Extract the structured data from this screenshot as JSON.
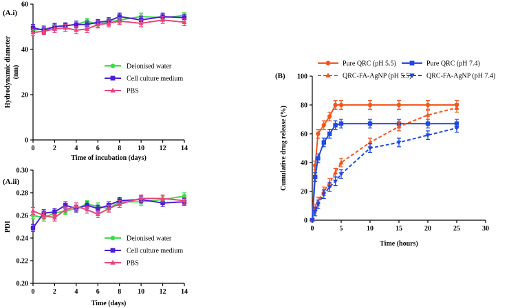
{
  "chart_data": [
    {
      "id": "A.i",
      "type": "line",
      "panel_label": "(A.i)",
      "xlabel": "Time of incubation (days)",
      "ylabel_lines": [
        "Hydrodynamic diameter",
        "(nm)"
      ],
      "xlim": [
        0,
        14
      ],
      "ylim": [
        0,
        60
      ],
      "xticks": [
        0,
        2,
        4,
        6,
        8,
        10,
        12,
        14
      ],
      "yticks": [
        0,
        20,
        40,
        60
      ],
      "legend_position": "center-right",
      "series": [
        {
          "name": "Deionised water",
          "color": "#3ddc4a",
          "marker": "circle",
          "x": [
            0,
            1,
            2,
            3,
            4,
            5,
            6,
            7,
            8,
            10,
            12,
            14
          ],
          "y": [
            48.5,
            49,
            50,
            50.5,
            51,
            52.5,
            51,
            52,
            53,
            54.5,
            54,
            55
          ],
          "err": [
            1.2,
            1.5,
            1.2,
            1.2,
            1.5,
            1.2,
            1.2,
            1.5,
            1.5,
            1.5,
            1.2,
            1.2
          ]
        },
        {
          "name": "Cell culture medium",
          "color": "#4a1fd6",
          "marker": "square",
          "x": [
            0,
            1,
            2,
            3,
            4,
            5,
            6,
            7,
            8,
            10,
            12,
            14
          ],
          "y": [
            49.5,
            48.5,
            50,
            50.5,
            51,
            51,
            52,
            52.5,
            54.5,
            53,
            54.5,
            54
          ],
          "err": [
            1.5,
            1.5,
            1.5,
            1.2,
            1.5,
            1.5,
            1.2,
            1.5,
            1.5,
            1.5,
            1.5,
            1.5
          ]
        },
        {
          "name": "PBS",
          "color": "#e8457a",
          "marker": "triangle",
          "x": [
            0,
            1,
            2,
            3,
            4,
            5,
            6,
            7,
            8,
            10,
            12,
            14
          ],
          "y": [
            47.5,
            48,
            49,
            49.5,
            48.5,
            49,
            51,
            51.5,
            52.5,
            51.5,
            53,
            52
          ],
          "err": [
            1.5,
            1.5,
            1.5,
            1.5,
            1.5,
            1.5,
            1.5,
            1.5,
            1.5,
            1.5,
            1.5,
            1.5
          ]
        }
      ]
    },
    {
      "id": "A.ii",
      "type": "line",
      "panel_label": "(A.ii)",
      "xlabel": "Time (days)",
      "ylabel_lines": [
        "PDI"
      ],
      "xlim": [
        0,
        14
      ],
      "ylim": [
        0.2,
        0.3
      ],
      "xticks": [
        0,
        2,
        4,
        6,
        8,
        10,
        12,
        14
      ],
      "yticks": [
        0.2,
        0.22,
        0.24,
        0.26,
        0.28,
        0.3
      ],
      "ytick_labels": [
        "0.20",
        "0.22",
        "0.24",
        "0.26",
        "0.28",
        "0.30"
      ],
      "legend_position": "lower-right",
      "series": [
        {
          "name": "Deionised water",
          "color": "#3ddc4a",
          "marker": "circle",
          "x": [
            0,
            1,
            2,
            3,
            4,
            5,
            6,
            7,
            8,
            10,
            12,
            14
          ],
          "y": [
            0.26,
            0.258,
            0.262,
            0.264,
            0.266,
            0.27,
            0.268,
            0.266,
            0.272,
            0.272,
            0.274,
            0.277
          ],
          "err": [
            0.003,
            0.003,
            0.003,
            0.003,
            0.003,
            0.003,
            0.003,
            0.003,
            0.003,
            0.003,
            0.003,
            0.003
          ]
        },
        {
          "name": "Cell culture medium",
          "color": "#4a1fd6",
          "marker": "square",
          "x": [
            0,
            1,
            2,
            3,
            4,
            5,
            6,
            7,
            8,
            10,
            12,
            14
          ],
          "y": [
            0.249,
            0.262,
            0.263,
            0.269,
            0.266,
            0.269,
            0.266,
            0.269,
            0.273,
            0.274,
            0.271,
            0.272
          ],
          "err": [
            0.003,
            0.003,
            0.003,
            0.003,
            0.003,
            0.003,
            0.003,
            0.003,
            0.003,
            0.003,
            0.003,
            0.003
          ]
        },
        {
          "name": "PBS",
          "color": "#e8457a",
          "marker": "triangle",
          "x": [
            0,
            1,
            2,
            3,
            4,
            5,
            6,
            7,
            8,
            10,
            12,
            14
          ],
          "y": [
            0.264,
            0.26,
            0.258,
            0.265,
            0.268,
            0.265,
            0.261,
            0.266,
            0.27,
            0.275,
            0.275,
            0.273
          ],
          "err": [
            0.003,
            0.003,
            0.003,
            0.003,
            0.003,
            0.003,
            0.003,
            0.003,
            0.003,
            0.003,
            0.003,
            0.003
          ]
        }
      ]
    },
    {
      "id": "B",
      "type": "line",
      "panel_label": "(B)",
      "xlabel": "Time (hours)",
      "ylabel_lines": [
        "Cumulative drug release (%)"
      ],
      "xlim": [
        0,
        30
      ],
      "ylim": [
        0,
        100
      ],
      "xticks": [
        0,
        5,
        10,
        15,
        20,
        25,
        30
      ],
      "yticks": [
        0,
        20,
        40,
        60,
        80,
        100
      ],
      "legend_position": "top",
      "series": [
        {
          "name": "Pure QRC (pH 5.5)",
          "color": "#f2561d",
          "marker": "circle",
          "dash": "solid",
          "x": [
            0,
            0.5,
            1,
            2,
            3,
            4,
            5,
            10,
            15,
            20,
            25
          ],
          "y": [
            0,
            38,
            60,
            66,
            72,
            80,
            80,
            80,
            80,
            80,
            80
          ],
          "err": [
            0,
            3,
            3,
            3,
            3,
            3,
            3,
            3,
            3,
            3,
            3
          ]
        },
        {
          "name": "Pure QRC (pH 7.4)",
          "color": "#1f49e0",
          "marker": "square",
          "dash": "solid",
          "x": [
            0,
            0.5,
            1,
            2,
            3,
            4,
            5,
            10,
            15,
            20,
            25
          ],
          "y": [
            0,
            30,
            43,
            54,
            60,
            66,
            67,
            67,
            67,
            67,
            67
          ],
          "err": [
            0,
            3,
            3,
            3,
            3,
            3,
            3,
            3,
            3,
            3,
            3
          ]
        },
        {
          "name": "QRC-FA-AgNP (pH 5.5)",
          "color": "#f2561d",
          "marker": "triangle",
          "dash": "dashed",
          "x": [
            0,
            0.5,
            1,
            2,
            3,
            4,
            5,
            10,
            15,
            20,
            25
          ],
          "y": [
            0,
            8,
            13,
            20,
            26,
            33,
            40,
            54,
            65,
            73,
            78
          ],
          "err": [
            0,
            3,
            3,
            3,
            3,
            3,
            3,
            3,
            3,
            3,
            3
          ]
        },
        {
          "name": "QRC-FA-AgNP (pH 7.4)",
          "color": "#1f49e0",
          "marker": "invtriangle",
          "dash": "dashed",
          "x": [
            0,
            0.5,
            1,
            2,
            3,
            4,
            5,
            10,
            15,
            20,
            25
          ],
          "y": [
            0,
            6,
            11,
            18,
            23,
            27,
            32,
            50,
            54,
            59,
            64
          ],
          "err": [
            0,
            3,
            3,
            3,
            3,
            3,
            3,
            3,
            3,
            3,
            3
          ]
        }
      ]
    }
  ]
}
